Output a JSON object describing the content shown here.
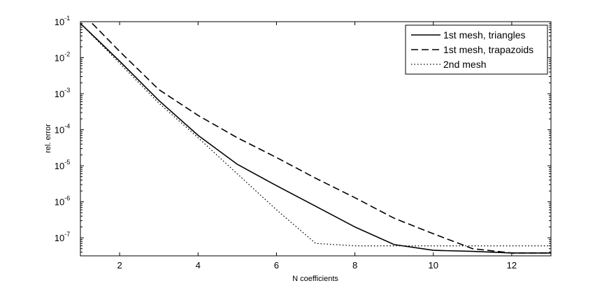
{
  "chart_data": {
    "type": "line",
    "xlabel": "N coefficients",
    "ylabel": "rel. error",
    "xlim": [
      1,
      13
    ],
    "ylim_exp": [
      -7.5,
      -1
    ],
    "yscale": "log",
    "x_ticks": [
      2,
      4,
      6,
      8,
      10,
      12
    ],
    "y_tick_exponents": [
      -7,
      -6,
      -5,
      -4,
      -3,
      -2,
      -1
    ],
    "y_tick_base": "10",
    "legend_position": "top-right",
    "grid": false,
    "series": [
      {
        "name": "1st mesh, triangles",
        "style": "solid",
        "color": "#000000",
        "x": [
          1,
          2,
          3,
          4,
          5,
          6,
          7,
          8,
          9,
          10,
          11,
          12,
          13
        ],
        "y": [
          0.09,
          0.008,
          0.00065,
          7e-05,
          1.1e-05,
          2.8e-06,
          7.5e-07,
          2e-07,
          6.5e-08,
          4.5e-08,
          4.2e-08,
          3.8e-08,
          3.8e-08
        ]
      },
      {
        "name": "1st mesh, trapazoids",
        "style": "dashed",
        "color": "#000000",
        "x": [
          1.3,
          2,
          3,
          4,
          5,
          6,
          7,
          8,
          9,
          10,
          11,
          12,
          13
        ],
        "y": [
          0.09,
          0.015,
          0.0013,
          0.00025,
          6e-05,
          1.7e-05,
          4.5e-06,
          1.3e-06,
          3.5e-07,
          1.3e-07,
          5e-08,
          3.8e-08,
          3.8e-08
        ]
      },
      {
        "name": "2nd mesh",
        "style": "dotted",
        "color": "#000000",
        "x": [
          1,
          2,
          3,
          4,
          5,
          6,
          7,
          8,
          9,
          10,
          11,
          12,
          13
        ],
        "y": [
          0.09,
          0.007,
          0.00055,
          6e-05,
          6e-06,
          6e-07,
          7e-08,
          6e-08,
          6e-08,
          6e-08,
          6e-08,
          6e-08,
          6e-08
        ]
      }
    ]
  }
}
